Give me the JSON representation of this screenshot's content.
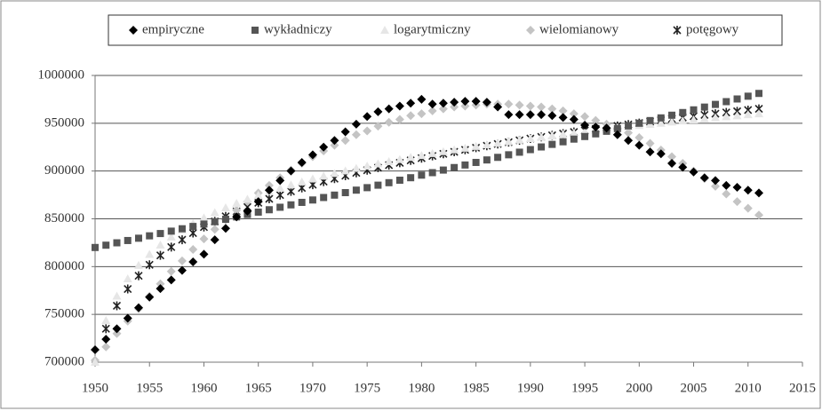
{
  "chart_data": {
    "type": "scatter",
    "x": [
      1950,
      1951,
      1952,
      1953,
      1954,
      1955,
      1956,
      1957,
      1958,
      1959,
      1960,
      1961,
      1962,
      1963,
      1964,
      1965,
      1966,
      1967,
      1968,
      1969,
      1970,
      1971,
      1972,
      1973,
      1974,
      1975,
      1976,
      1977,
      1978,
      1979,
      1980,
      1981,
      1982,
      1983,
      1984,
      1985,
      1986,
      1987,
      1988,
      1989,
      1990,
      1991,
      1992,
      1993,
      1994,
      1995,
      1996,
      1997,
      1998,
      1999,
      2000,
      2001,
      2002,
      2003,
      2004,
      2005,
      2006,
      2007,
      2008,
      2009,
      2010,
      2011
    ],
    "series": [
      {
        "name": "empiryczne",
        "color": "#000000",
        "marker": "diamond",
        "values": [
          713000,
          724000,
          735000,
          746000,
          757000,
          768000,
          777000,
          786000,
          796000,
          805000,
          813000,
          828000,
          840000,
          852000,
          858000,
          868000,
          880000,
          890000,
          900000,
          909000,
          917000,
          925000,
          932000,
          941000,
          949000,
          957000,
          962000,
          965000,
          968000,
          971000,
          975000,
          970000,
          971000,
          972000,
          973000,
          973000,
          972000,
          967000,
          959000,
          959000,
          959000,
          959000,
          958000,
          956000,
          954000,
          948000,
          946000,
          945000,
          938000,
          932000,
          927000,
          920000,
          918000,
          908000,
          904000,
          899000,
          893000,
          890000,
          885000,
          883000,
          880000,
          877000
        ]
      },
      {
        "name": "wykładniczy",
        "color": "#555555",
        "marker": "square",
        "values": [
          820000,
          822400,
          824900,
          827300,
          829700,
          832200,
          834600,
          837100,
          839600,
          842000,
          844500,
          847000,
          849500,
          852000,
          854500,
          857000,
          859500,
          862100,
          864600,
          867200,
          869700,
          872300,
          874800,
          877400,
          880000,
          882600,
          885200,
          887800,
          890400,
          893000,
          895700,
          898300,
          901000,
          903600,
          906300,
          909000,
          911600,
          914300,
          917000,
          919700,
          922400,
          925200,
          927900,
          930600,
          933400,
          936100,
          938900,
          941600,
          944400,
          947200,
          950000,
          952800,
          955600,
          958400,
          961200,
          964000,
          966900,
          969700,
          972600,
          975400,
          978300,
          981200
        ]
      },
      {
        "name": "logarytmiczny",
        "color": "#e6e6e6",
        "marker": "triangle",
        "values": [
          700000,
          743700,
          769200,
          787300,
          801400,
          812900,
          822600,
          831000,
          838400,
          845100,
          851100,
          856500,
          861600,
          866300,
          870600,
          874700,
          878500,
          882100,
          885500,
          888700,
          891800,
          894700,
          897500,
          900200,
          902800,
          905300,
          907600,
          909900,
          912100,
          914300,
          916300,
          918400,
          920300,
          922200,
          924000,
          925800,
          927500,
          929200,
          930800,
          932400,
          934000,
          935500,
          936900,
          938400,
          939800,
          941200,
          942600,
          943900,
          945200,
          946500,
          947700,
          948900,
          950100,
          951300,
          952500,
          953600,
          954700,
          955800,
          956900,
          957900,
          959000,
          960000
        ]
      },
      {
        "name": "wielomianowy",
        "color": "#c4c4c4",
        "marker": "diamond",
        "values": [
          702000,
          716000,
          730000,
          743000,
          756000,
          769000,
          782000,
          795000,
          806000,
          818000,
          829000,
          839000,
          849000,
          859000,
          868000,
          877000,
          885000,
          893000,
          901000,
          908000,
          915000,
          921000,
          927000,
          932000,
          938000,
          942000,
          947000,
          951000,
          954000,
          958000,
          960000,
          963000,
          965000,
          967000,
          968000,
          969000,
          970000,
          970000,
          970000,
          969000,
          968000,
          967000,
          965000,
          963000,
          960000,
          957000,
          953000,
          949000,
          945000,
          940000,
          935000,
          929000,
          922000,
          915000,
          908000,
          900000,
          892000,
          884000,
          876000,
          868000,
          861000,
          854000
        ]
      },
      {
        "name": "potęgowy",
        "color": "#222222",
        "marker": "asterisk",
        "values": [
          null,
          735000,
          759000,
          776600,
          790400,
          801900,
          811800,
          820400,
          828100,
          835100,
          841400,
          847300,
          852600,
          857700,
          862300,
          866800,
          870900,
          874900,
          878700,
          882300,
          885700,
          888900,
          892000,
          895100,
          898100,
          900800,
          903500,
          906100,
          908600,
          911100,
          913400,
          915800,
          918000,
          920100,
          922200,
          924400,
          926400,
          928300,
          930200,
          932100,
          934000,
          935700,
          937400,
          939200,
          940900,
          942500,
          944100,
          945700,
          947200,
          948700,
          950200,
          951600,
          953100,
          954500,
          956000,
          957300,
          958700,
          960000,
          961300,
          962500,
          963800,
          965100
        ]
      }
    ],
    "xlim": [
      1950,
      2015
    ],
    "xticks": [
      1950,
      1955,
      1960,
      1965,
      1970,
      1975,
      1980,
      1985,
      1990,
      1995,
      2000,
      2005,
      2010,
      2015
    ],
    "ylim": [
      700000,
      1000000
    ],
    "yticks": [
      700000,
      750000,
      800000,
      850000,
      900000,
      950000,
      1000000
    ],
    "grid": true,
    "legend": "top"
  }
}
